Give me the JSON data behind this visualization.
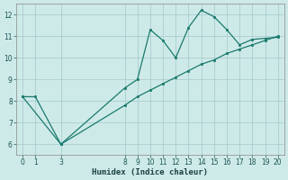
{
  "xlabel": "Humidex (Indice chaleur)",
  "background_color": "#ceeae8",
  "grid_color": "#a8cece",
  "line_color": "#1a7a6e",
  "series1_x": [
    0,
    1,
    3,
    8,
    9,
    10,
    11,
    12,
    13,
    14,
    15,
    16,
    17,
    18,
    19,
    20
  ],
  "series1_y": [
    8.2,
    8.2,
    6.0,
    8.6,
    9.0,
    11.3,
    10.8,
    10.0,
    11.4,
    12.2,
    11.9,
    11.3,
    10.6,
    10.85,
    10.9,
    10.95
  ],
  "series2_x": [
    0,
    3,
    8,
    9,
    10,
    11,
    12,
    13,
    14,
    15,
    16,
    17,
    18,
    19,
    20
  ],
  "series2_y": [
    8.2,
    6.0,
    7.8,
    8.2,
    8.5,
    8.8,
    9.1,
    9.4,
    9.7,
    9.9,
    10.2,
    10.4,
    10.6,
    10.8,
    11.0
  ],
  "ylim": [
    5.5,
    12.5
  ],
  "xlim": [
    -0.5,
    20.5
  ],
  "yticks": [
    6,
    7,
    8,
    9,
    10,
    11,
    12
  ],
  "xticks": [
    0,
    1,
    3,
    8,
    9,
    10,
    11,
    12,
    13,
    14,
    15,
    16,
    17,
    18,
    19,
    20
  ],
  "tick_fontsize": 5.5,
  "xlabel_fontsize": 6.5
}
